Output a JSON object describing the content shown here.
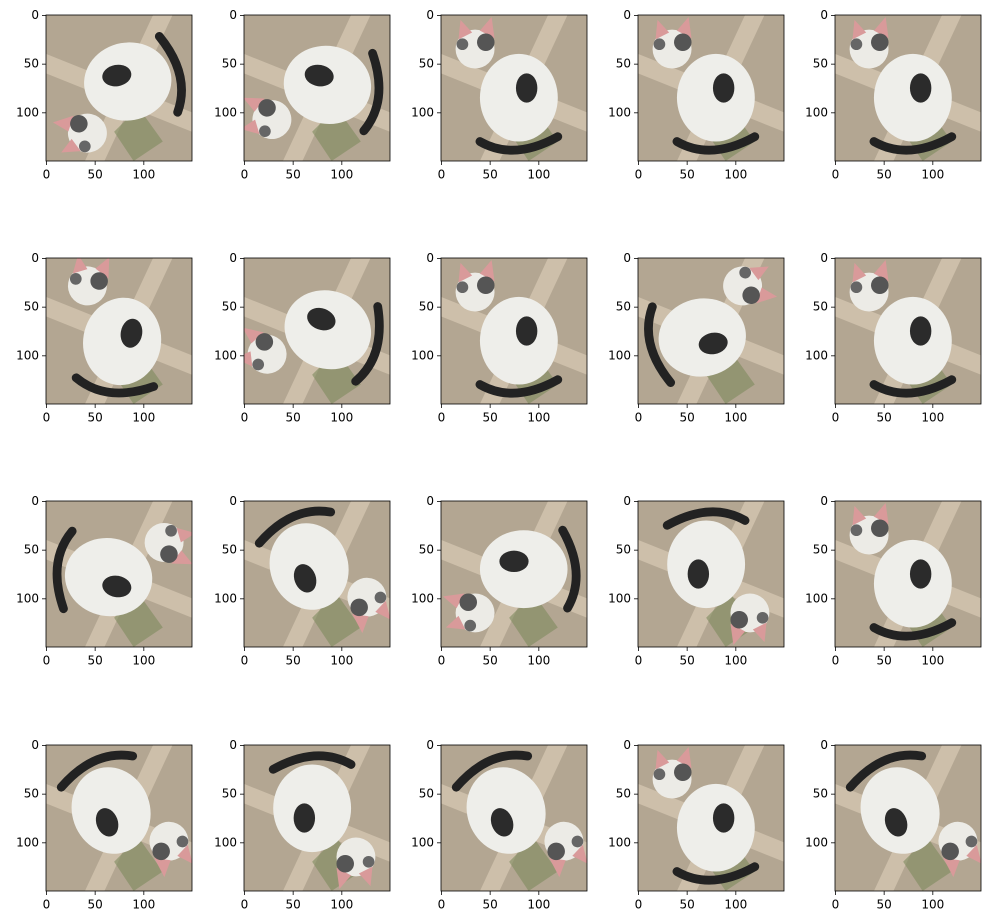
{
  "panels": [
    {
      "xticks": [
        0,
        50,
        100
      ],
      "yticks": [
        0,
        50,
        100
      ]
    },
    {
      "xticks": [
        0,
        50,
        100
      ],
      "yticks": [
        0,
        50,
        100
      ]
    },
    {
      "xticks": [
        0,
        50,
        100
      ],
      "yticks": [
        0,
        50,
        100
      ]
    },
    {
      "xticks": [
        0,
        50,
        100
      ],
      "yticks": [
        0,
        50,
        100
      ]
    },
    {
      "xticks": [
        0,
        50,
        100
      ],
      "yticks": [
        0,
        50,
        100
      ]
    },
    {
      "xticks": [
        0,
        50,
        100
      ],
      "yticks": [
        0,
        50,
        100
      ]
    },
    {
      "xticks": [
        0,
        50,
        100
      ],
      "yticks": [
        0,
        50,
        100
      ]
    },
    {
      "xticks": [
        0,
        50,
        100
      ],
      "yticks": [
        0,
        50,
        100
      ]
    },
    {
      "xticks": [
        0,
        50,
        100
      ],
      "yticks": [
        0,
        50,
        100
      ]
    },
    {
      "xticks": [
        0,
        50,
        100
      ],
      "yticks": [
        0,
        50,
        100
      ]
    },
    {
      "xticks": [
        0,
        50,
        100
      ],
      "yticks": [
        0,
        50,
        100
      ]
    },
    {
      "xticks": [
        0,
        50,
        100
      ],
      "yticks": [
        0,
        50,
        100
      ]
    },
    {
      "xticks": [
        0,
        50,
        100
      ],
      "yticks": [
        0,
        50,
        100
      ]
    },
    {
      "xticks": [
        0,
        50,
        100
      ],
      "yticks": [
        0,
        50,
        100
      ]
    },
    {
      "xticks": [
        0,
        50,
        100
      ],
      "yticks": [
        0,
        50,
        100
      ]
    },
    {
      "xticks": [
        0,
        50,
        100
      ],
      "yticks": [
        0,
        50,
        100
      ]
    },
    {
      "xticks": [
        0,
        50,
        100
      ],
      "yticks": [
        0,
        50,
        100
      ]
    },
    {
      "xticks": [
        0,
        50,
        100
      ],
      "yticks": [
        0,
        50,
        100
      ]
    },
    {
      "xticks": [
        0,
        50,
        100
      ],
      "yticks": [
        0,
        50,
        100
      ]
    },
    {
      "xticks": [
        0,
        50,
        100
      ],
      "yticks": [
        0,
        50,
        100
      ]
    }
  ]
}
